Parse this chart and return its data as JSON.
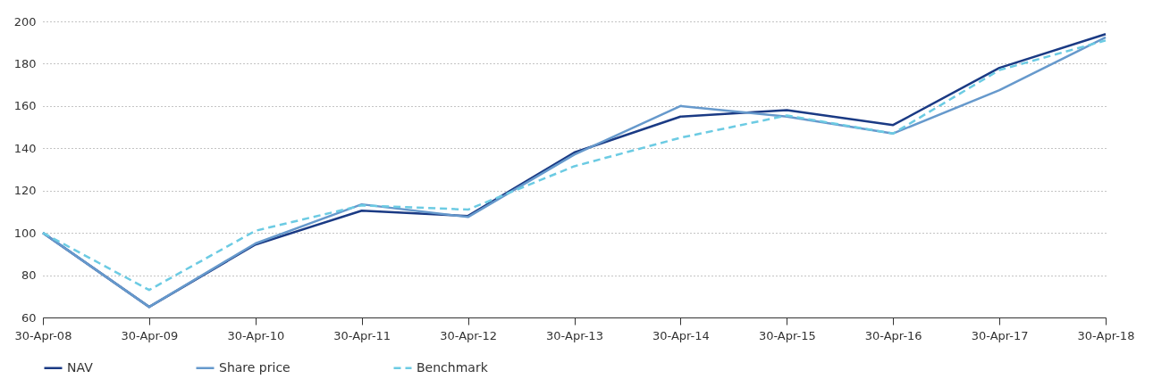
{
  "chart_data": {
    "type": "line",
    "categories": [
      "30-Apr-08",
      "30-Apr-09",
      "30-Apr-10",
      "30-Apr-11",
      "30-Apr-12",
      "30-Apr-13",
      "30-Apr-14",
      "30-Apr-15",
      "30-Apr-16",
      "30-Apr-17",
      "30-Apr-18"
    ],
    "series": [
      {
        "name": "NAV",
        "color": "#1a3a84",
        "line_style": "solid",
        "values": [
          100,
          65,
          94.5,
          110.5,
          108,
          138,
          155,
          158,
          151,
          178,
          194
        ]
      },
      {
        "name": "Share price",
        "color": "#6699cc",
        "line_style": "solid",
        "values": [
          100,
          65,
          95,
          113.5,
          107.5,
          137,
          160,
          155,
          147,
          167.5,
          192.5
        ]
      },
      {
        "name": "Benchmark",
        "color": "#6ccbe3",
        "line_style": "dashed",
        "values": [
          100,
          73,
          101,
          113,
          111,
          131.5,
          145,
          155.5,
          147,
          177,
          191
        ]
      }
    ],
    "ylim": [
      60,
      200
    ],
    "yticks": [
      60,
      80,
      100,
      120,
      140,
      160,
      180,
      200
    ],
    "grid": "y",
    "legend": "bottom",
    "marker": "none"
  }
}
